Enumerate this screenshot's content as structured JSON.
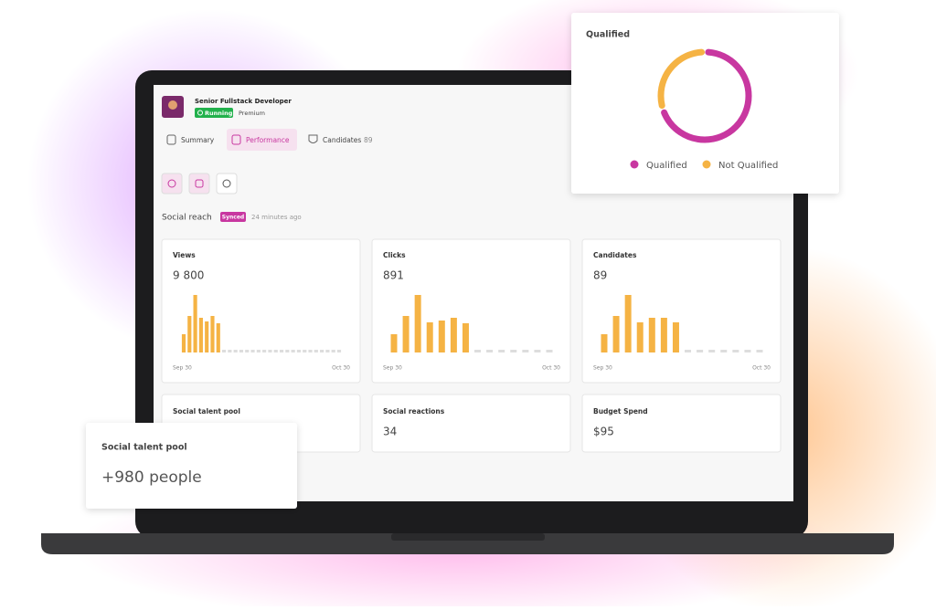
{
  "job": {
    "title": "Senior Fullstack Developer",
    "status": "Running",
    "plan": "Premium"
  },
  "tabs": [
    {
      "label": "Summary"
    },
    {
      "label": "Performance"
    },
    {
      "label": "Candidates",
      "count": "89"
    }
  ],
  "section": {
    "title": "Social reach",
    "badge": "Synced",
    "updated": "24 minutes ago"
  },
  "chart_cards": [
    {
      "title": "Views",
      "value": "9 800",
      "start": "Sep 30",
      "end": "Oct 30",
      "bars": [
        20,
        40,
        63,
        38,
        34,
        40,
        32,
        null,
        null,
        null,
        null,
        null,
        null,
        null,
        null,
        null,
        null,
        null,
        null,
        null,
        null,
        null,
        null,
        null,
        null,
        null,
        null,
        null
      ]
    },
    {
      "title": "Clicks",
      "value": "891",
      "start": "Sep 30",
      "end": "Oct 30",
      "bars": [
        20,
        40,
        63,
        33,
        35,
        38,
        32,
        null,
        null,
        null,
        null,
        null,
        null,
        null
      ]
    },
    {
      "title": "Candidates",
      "value": "89",
      "start": "Sep 30",
      "end": "Oct 30",
      "bars": [
        20,
        40,
        63,
        33,
        38,
        38,
        33,
        null,
        null,
        null,
        null,
        null,
        null,
        null
      ]
    }
  ],
  "stat_cards": [
    {
      "title": "Social talent pool"
    },
    {
      "title": "Social reactions",
      "value": "34"
    },
    {
      "title": "Budget Spend",
      "value": "$95"
    }
  ],
  "talent_popup": {
    "title": "Social talent pool",
    "value": "+980 people"
  },
  "chart_data": {
    "type": "donut",
    "title": "Qualified",
    "series": [
      {
        "name": "Qualified",
        "color": "#c837a0",
        "value": 70
      },
      {
        "name": "Not Qualified",
        "color": "#f5b344",
        "value": 30
      }
    ]
  }
}
